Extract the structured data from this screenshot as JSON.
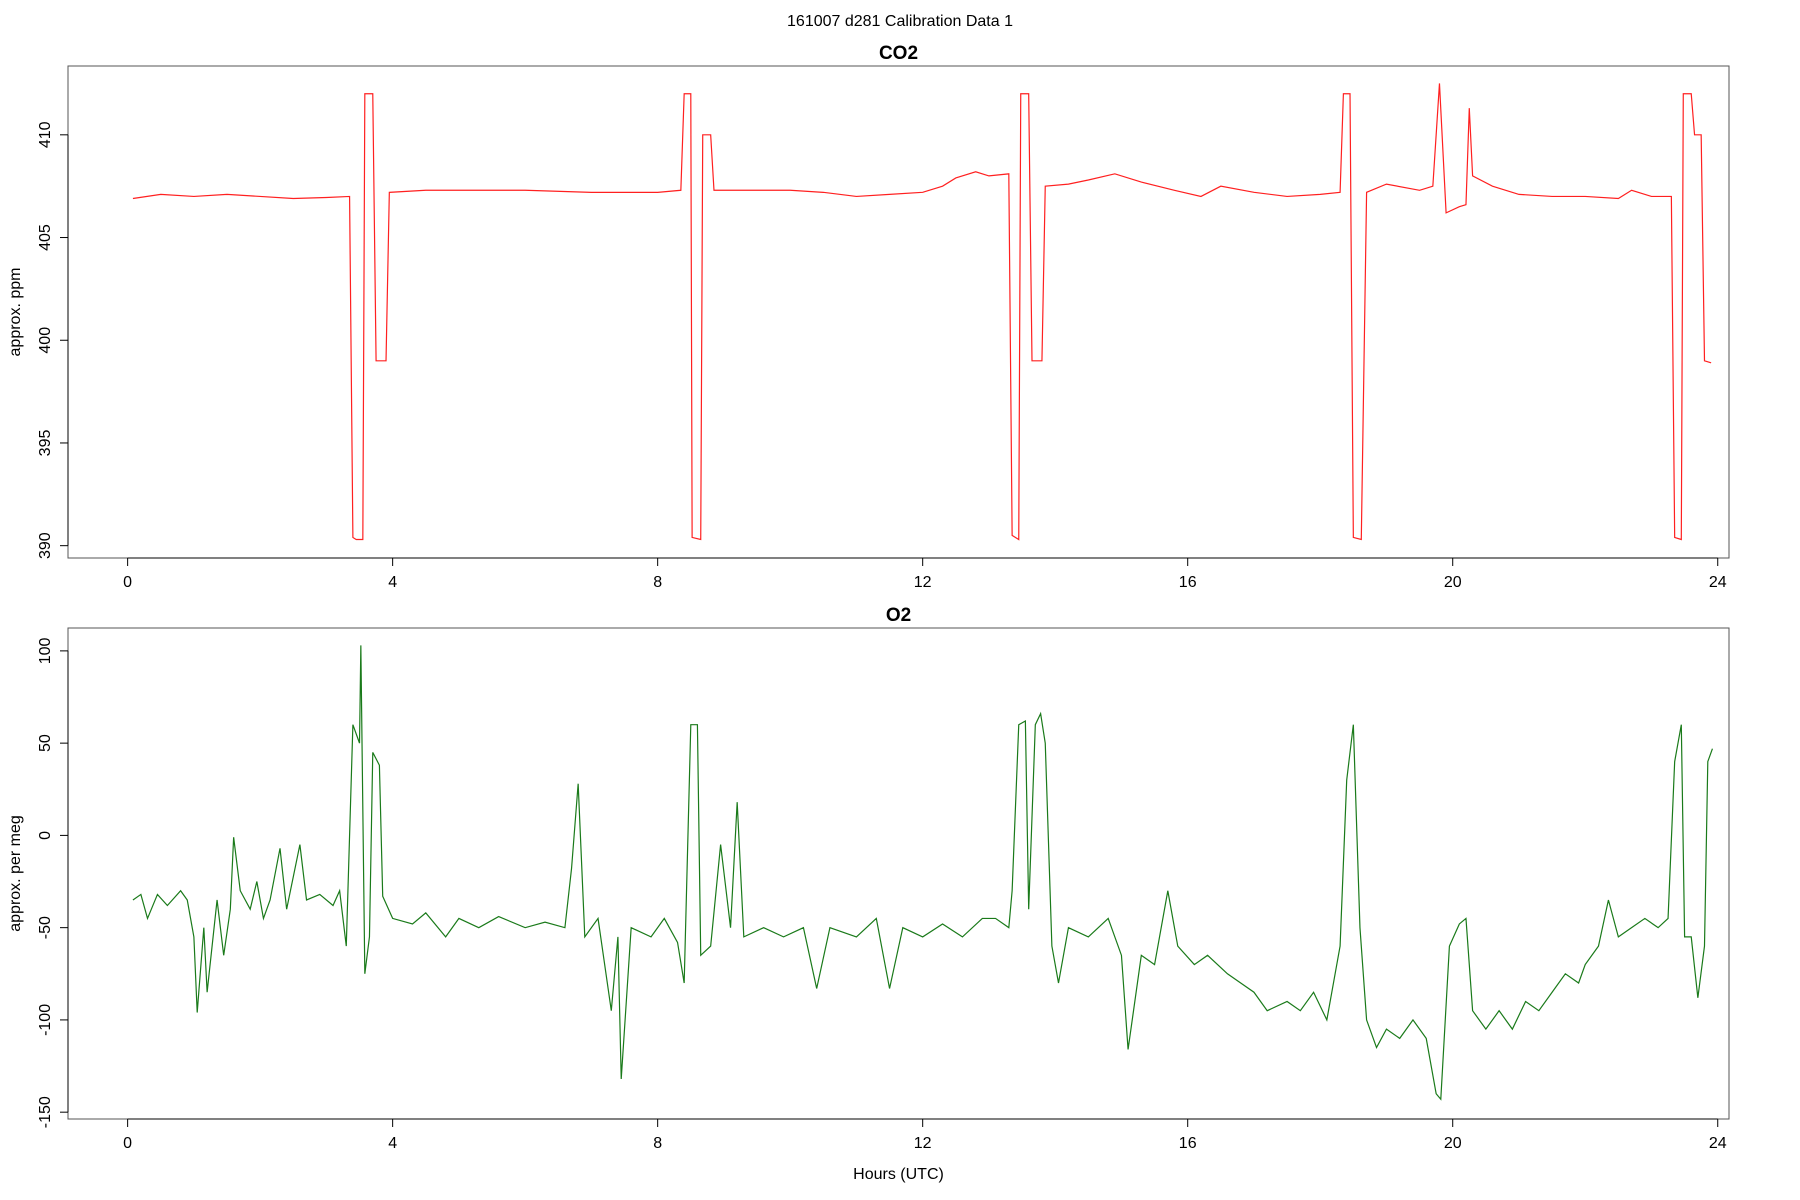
{
  "title": "161007   d281   Calibration Data 1",
  "chart_data": [
    {
      "type": "line",
      "title": "CO2",
      "ylabel": "approx. ppm",
      "color": "#ff2020",
      "xlim": [
        -0.9,
        24.17
      ],
      "xticks": [
        0,
        4,
        8,
        12,
        16,
        20,
        24
      ],
      "ylim": [
        389.4,
        413.35
      ],
      "yticks": [
        390,
        395,
        400,
        405,
        410
      ],
      "x": [
        0.08,
        0.5,
        1,
        1.5,
        2,
        2.5,
        3,
        3.35,
        3.4,
        3.45,
        3.55,
        3.58,
        3.7,
        3.75,
        3.9,
        3.95,
        4.5,
        5,
        6,
        7,
        8,
        8.35,
        8.4,
        8.5,
        8.52,
        8.65,
        8.68,
        8.8,
        8.85,
        9.5,
        10,
        10.5,
        11,
        11.5,
        12,
        12.3,
        12.5,
        12.8,
        13,
        13.3,
        13.35,
        13.45,
        13.48,
        13.6,
        13.65,
        13.8,
        13.85,
        14.2,
        14.5,
        14.9,
        15.3,
        15.8,
        16.2,
        16.5,
        17,
        17.5,
        18,
        18.3,
        18.35,
        18.45,
        18.5,
        18.62,
        18.7,
        19,
        19.5,
        19.7,
        19.8,
        19.9,
        20.1,
        20.2,
        20.25,
        20.3,
        20.6,
        21,
        21.5,
        22,
        22.5,
        22.7,
        23,
        23.3,
        23.35,
        23.45,
        23.48,
        23.6,
        23.65,
        23.75,
        23.8,
        23.9
      ],
      "values": [
        406.9,
        407.1,
        407.0,
        407.1,
        407.0,
        406.9,
        406.95,
        407.0,
        390.4,
        390.3,
        390.3,
        412,
        412,
        399,
        399,
        407.2,
        407.3,
        407.3,
        407.3,
        407.2,
        407.2,
        407.3,
        412,
        412,
        390.4,
        390.3,
        410,
        410,
        407.3,
        407.3,
        407.3,
        407.2,
        407.0,
        407.1,
        407.2,
        407.5,
        407.9,
        408.2,
        408.0,
        408.1,
        390.5,
        390.3,
        412,
        412,
        399,
        399,
        407.5,
        407.6,
        407.8,
        408.1,
        407.7,
        407.3,
        407.0,
        407.5,
        407.2,
        407.0,
        407.1,
        407.2,
        412,
        412,
        390.4,
        390.3,
        407.2,
        407.6,
        407.3,
        407.5,
        412.5,
        406.2,
        406.5,
        406.6,
        411.3,
        408,
        407.5,
        407.1,
        407.0,
        407.0,
        406.9,
        407.3,
        407.0,
        407.0,
        390.4,
        390.3,
        412,
        412,
        410,
        410,
        399,
        398.9
      ]
    },
    {
      "type": "line",
      "title": "O2",
      "ylabel": "approx. per meg",
      "xlabel": "Hours (UTC)",
      "color": "#1a7a1a",
      "xlim": [
        -0.9,
        24.17
      ],
      "xticks": [
        0,
        4,
        8,
        12,
        16,
        20,
        24
      ],
      "ylim": [
        -153.7,
        112.4
      ],
      "yticks": [
        -150,
        -100,
        -50,
        0,
        50,
        100
      ],
      "x": [
        0.08,
        0.2,
        0.3,
        0.45,
        0.6,
        0.8,
        0.9,
        1.0,
        1.05,
        1.15,
        1.2,
        1.35,
        1.45,
        1.55,
        1.6,
        1.7,
        1.85,
        1.95,
        2.05,
        2.15,
        2.3,
        2.4,
        2.6,
        2.7,
        2.9,
        3.1,
        3.2,
        3.3,
        3.4,
        3.5,
        3.52,
        3.58,
        3.65,
        3.7,
        3.8,
        3.85,
        4.0,
        4.3,
        4.5,
        4.8,
        5.0,
        5.3,
        5.6,
        6.0,
        6.3,
        6.6,
        6.7,
        6.8,
        6.9,
        7.1,
        7.3,
        7.4,
        7.45,
        7.6,
        7.9,
        8.1,
        8.3,
        8.4,
        8.5,
        8.6,
        8.65,
        8.8,
        8.95,
        9.1,
        9.2,
        9.3,
        9.6,
        9.9,
        10.2,
        10.4,
        10.6,
        11.0,
        11.3,
        11.5,
        11.7,
        12.0,
        12.3,
        12.6,
        12.9,
        13.1,
        13.3,
        13.35,
        13.45,
        13.55,
        13.6,
        13.7,
        13.78,
        13.85,
        13.95,
        14.05,
        14.2,
        14.5,
        14.8,
        15.0,
        15.1,
        15.3,
        15.5,
        15.7,
        15.85,
        16.1,
        16.3,
        16.6,
        16.8,
        17.0,
        17.2,
        17.5,
        17.7,
        17.9,
        18.1,
        18.3,
        18.4,
        18.5,
        18.6,
        18.7,
        18.85,
        19.0,
        19.2,
        19.4,
        19.6,
        19.75,
        19.82,
        19.95,
        20.1,
        20.2,
        20.3,
        20.5,
        20.7,
        20.9,
        21.1,
        21.3,
        21.5,
        21.7,
        21.9,
        22.0,
        22.2,
        22.35,
        22.5,
        22.7,
        22.9,
        23.1,
        23.25,
        23.35,
        23.45,
        23.5,
        23.6,
        23.7,
        23.8,
        23.85,
        23.92
      ],
      "values": [
        -35,
        -32,
        -45,
        -32,
        -38,
        -30,
        -35,
        -55,
        -96,
        -50,
        -85,
        -35,
        -65,
        -40,
        -1,
        -30,
        -40,
        -25,
        -45,
        -35,
        -7,
        -40,
        -5,
        -35,
        -32,
        -38,
        -30,
        -60,
        60,
        50,
        103,
        -75,
        -55,
        45,
        38,
        -33,
        -45,
        -48,
        -42,
        -55,
        -45,
        -50,
        -44,
        -50,
        -47,
        -50,
        -18,
        28,
        -55,
        -45,
        -95,
        -55,
        -132,
        -50,
        -55,
        -45,
        -58,
        -80,
        60,
        60,
        -65,
        -60,
        -5,
        -50,
        18,
        -55,
        -50,
        -55,
        -50,
        -83,
        -50,
        -55,
        -45,
        -83,
        -50,
        -55,
        -48,
        -55,
        -45,
        -45,
        -50,
        -30,
        60,
        62,
        -40,
        60,
        66,
        50,
        -60,
        -80,
        -50,
        -55,
        -45,
        -65,
        -116,
        -65,
        -70,
        -30,
        -60,
        -70,
        -65,
        -75,
        -80,
        -85,
        -95,
        -90,
        -95,
        -85,
        -100,
        -60,
        30,
        60,
        -50,
        -100,
        -115,
        -105,
        -110,
        -100,
        -110,
        -140,
        -143,
        -60,
        -48,
        -45,
        -95,
        -105,
        -95,
        -105,
        -90,
        -95,
        -85,
        -75,
        -80,
        -70,
        -60,
        -35,
        -55,
        -50,
        -45,
        -50,
        -45,
        40,
        60,
        -55,
        -55,
        -88,
        -60,
        40,
        47
      ]
    }
  ]
}
